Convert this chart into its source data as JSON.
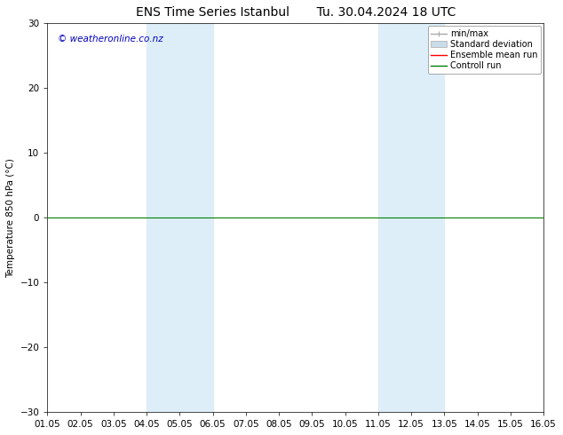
{
  "title_left": "ENS Time Series Istanbul",
  "title_right": "Tu. 30.04.2024 18 UTC",
  "ylabel": "Temperature 850 hPa (°C)",
  "ylim": [
    -30,
    30
  ],
  "yticks": [
    -30,
    -20,
    -10,
    0,
    10,
    20,
    30
  ],
  "xtick_labels": [
    "01.05",
    "02.05",
    "03.05",
    "04.05",
    "05.05",
    "06.05",
    "07.05",
    "08.05",
    "09.05",
    "10.05",
    "11.05",
    "12.05",
    "13.05",
    "14.05",
    "15.05",
    "16.05"
  ],
  "shaded_regions": [
    {
      "xstart": 3.0,
      "xend": 5.0
    },
    {
      "xstart": 10.0,
      "xend": 12.0
    }
  ],
  "shaded_color": "#ddeef8",
  "control_run_color": "#008000",
  "ensemble_mean_color": "#ff0000",
  "watermark_text": "© weatheronline.co.nz",
  "watermark_color": "#0000bb",
  "legend_labels": [
    "min/max",
    "Standard deviation",
    "Ensemble mean run",
    "Controll run"
  ],
  "minmax_color": "#aaaaaa",
  "std_color": "#c8dcea",
  "background_color": "#ffffff",
  "font_size": 7.5,
  "title_font_size": 10
}
